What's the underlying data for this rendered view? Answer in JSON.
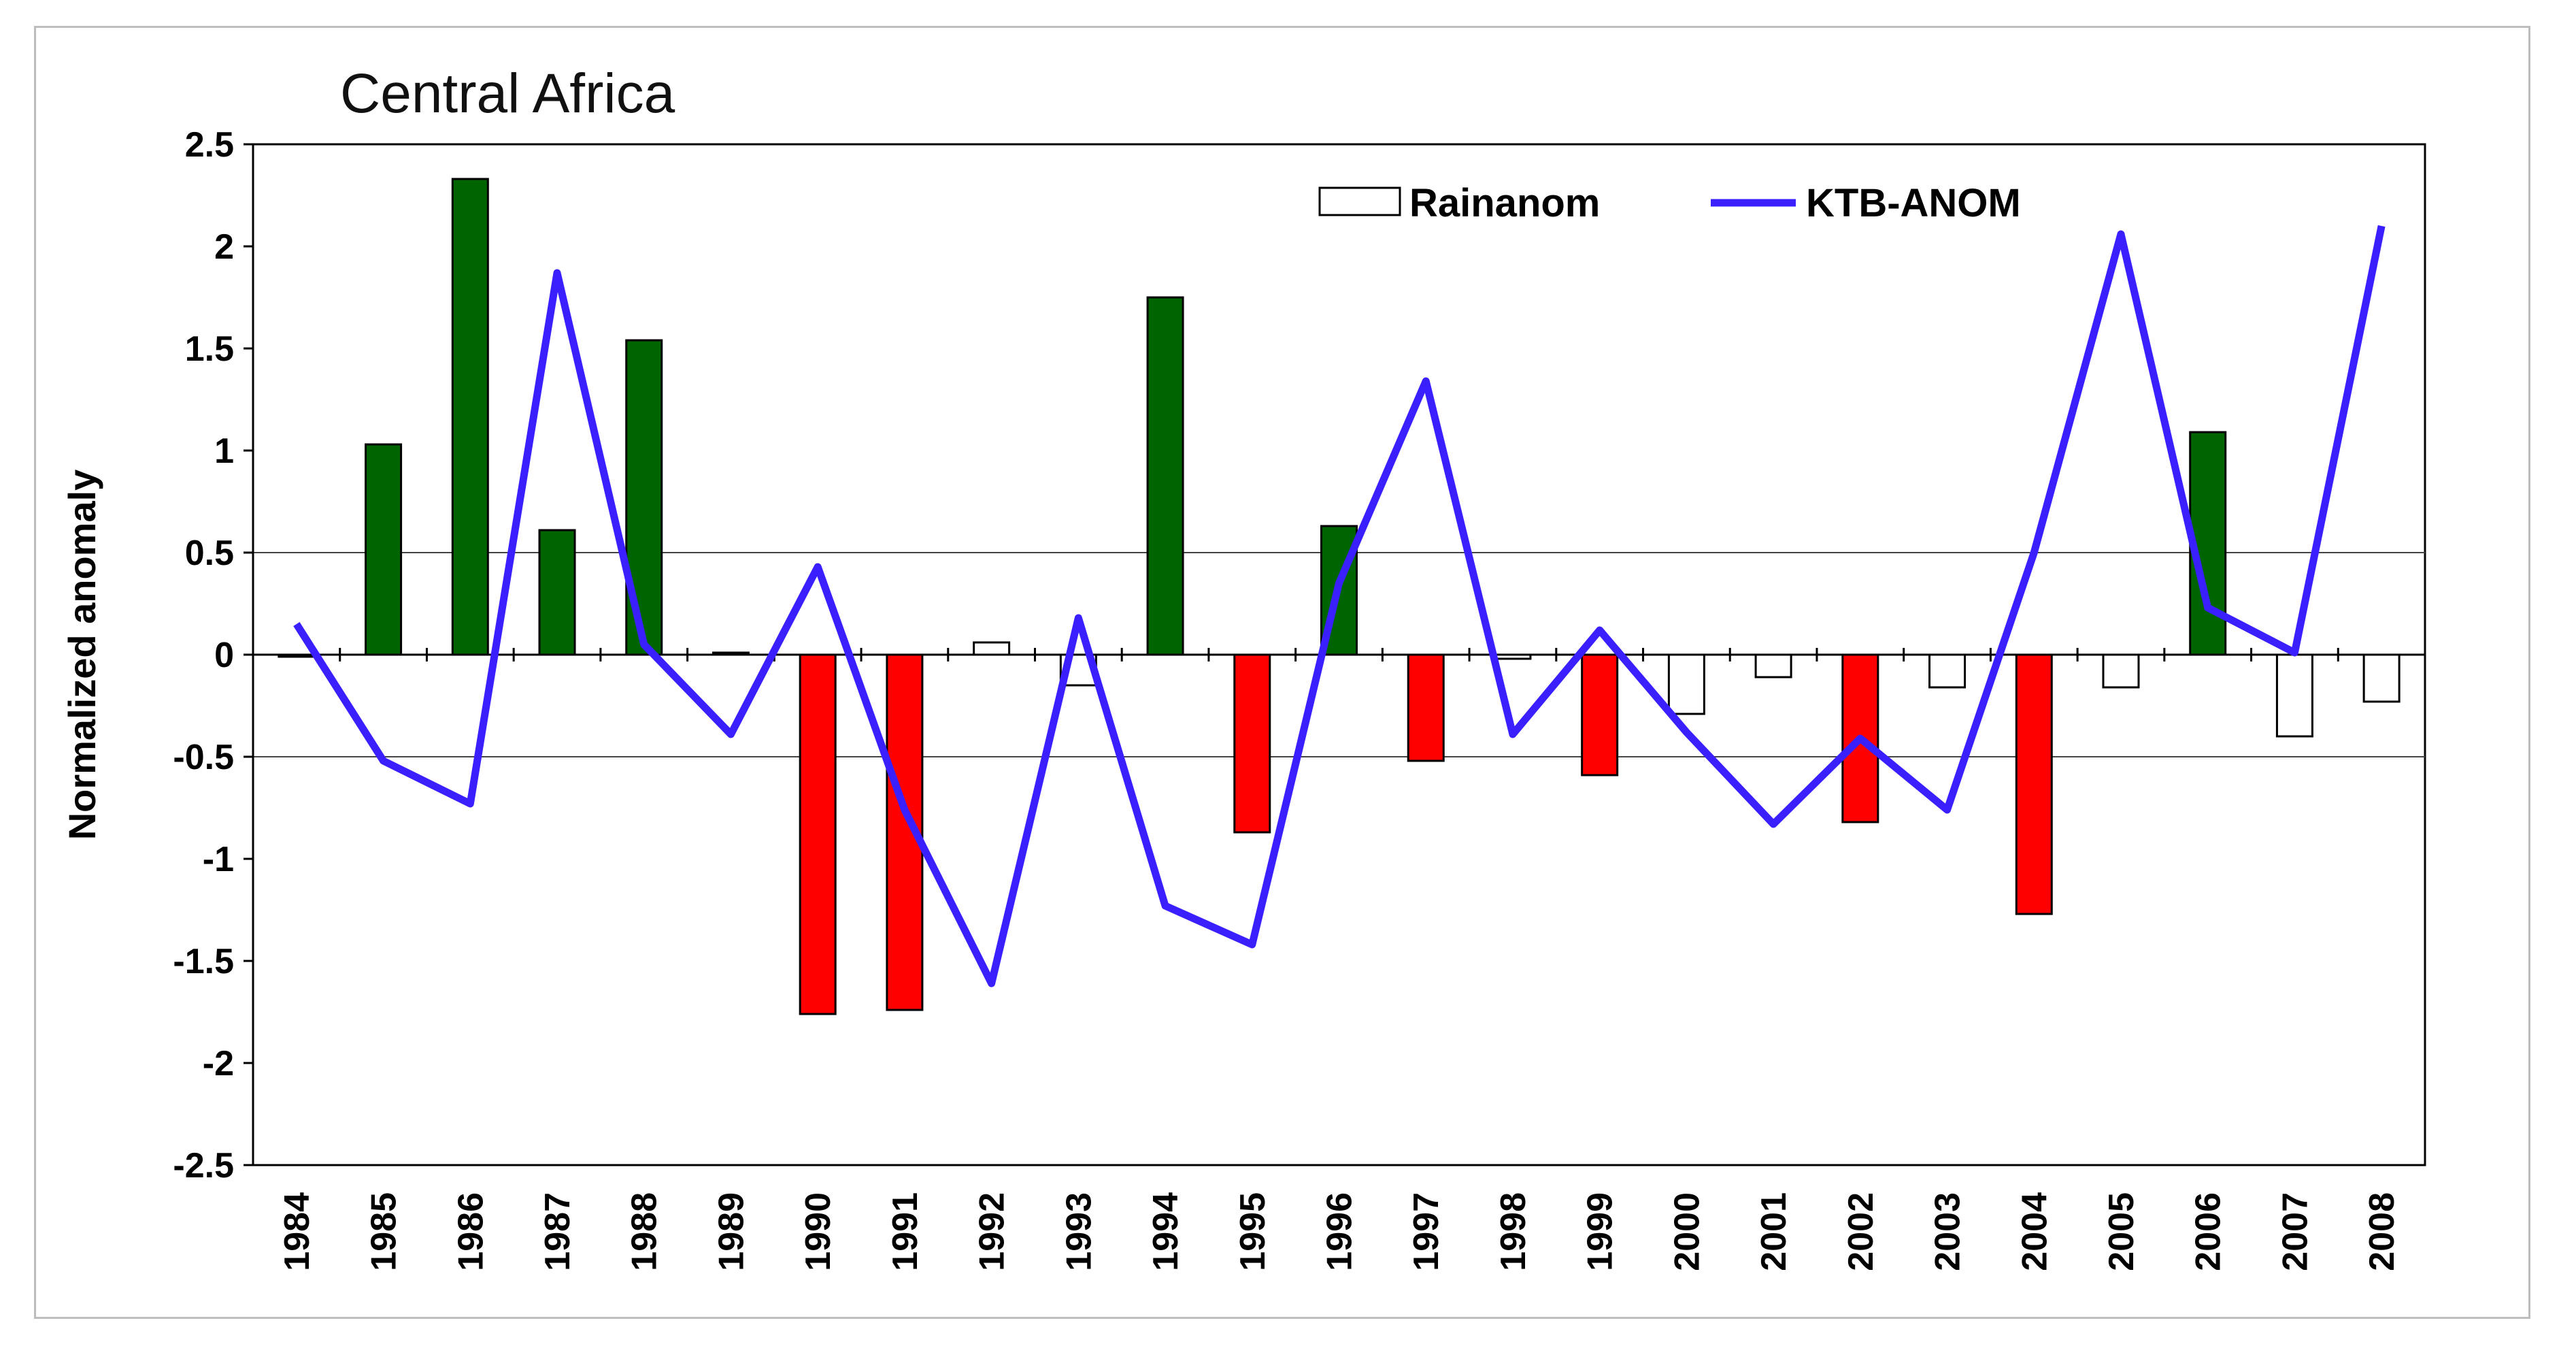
{
  "chart_data": {
    "type": "bar",
    "title": "Central Africa",
    "xlabel": "",
    "ylabel": "Normalized anomaly",
    "ylim": [
      -2.5,
      2.5
    ],
    "yticks": [
      2.5,
      2,
      1.5,
      1,
      0.5,
      0,
      -0.5,
      -1,
      -1.5,
      -2,
      -2.5
    ],
    "ytick_labels": [
      "2.5",
      "2",
      "1.5",
      "1",
      "0.5",
      "0",
      "-0.5",
      "-1",
      "-1.5",
      "-2",
      "-2.5"
    ],
    "reference_lines": [
      0.5,
      -0.5
    ],
    "categories": [
      "1984",
      "1985",
      "1986",
      "1987",
      "1988",
      "1989",
      "1990",
      "1991",
      "1992",
      "1993",
      "1994",
      "1995",
      "1996",
      "1997",
      "1998",
      "1999",
      "2000",
      "2001",
      "2002",
      "2003",
      "2004",
      "2005",
      "2006",
      "2007",
      "2008"
    ],
    "series": [
      {
        "name": "Rainanom",
        "type": "bar",
        "values": [
          -0.01,
          1.03,
          2.33,
          0.61,
          1.54,
          0.01,
          -1.76,
          -1.74,
          0.06,
          -0.15,
          1.75,
          -0.87,
          0.63,
          -0.52,
          -0.02,
          -0.59,
          -0.29,
          -0.11,
          -0.82,
          -0.16,
          -1.27,
          -0.16,
          1.09,
          -0.4,
          -0.23
        ],
        "colors": {
          "positive": "#006400",
          "negative": "#ff0000",
          "neutral": "#ffffff"
        }
      },
      {
        "name": "KTB-ANOM",
        "type": "line",
        "color": "#3a1fff",
        "values": [
          0.15,
          -0.52,
          -0.73,
          1.87,
          0.05,
          -0.39,
          0.43,
          -0.76,
          -1.61,
          0.18,
          -1.23,
          -1.42,
          0.35,
          1.34,
          -0.39,
          0.12,
          -0.38,
          -0.83,
          -0.41,
          -0.76,
          0.5,
          2.06,
          0.23,
          0.01,
          2.1
        ]
      }
    ],
    "legend": {
      "position": "top-right",
      "entries": [
        "Rainanom",
        "KTB-ANOM"
      ]
    }
  }
}
